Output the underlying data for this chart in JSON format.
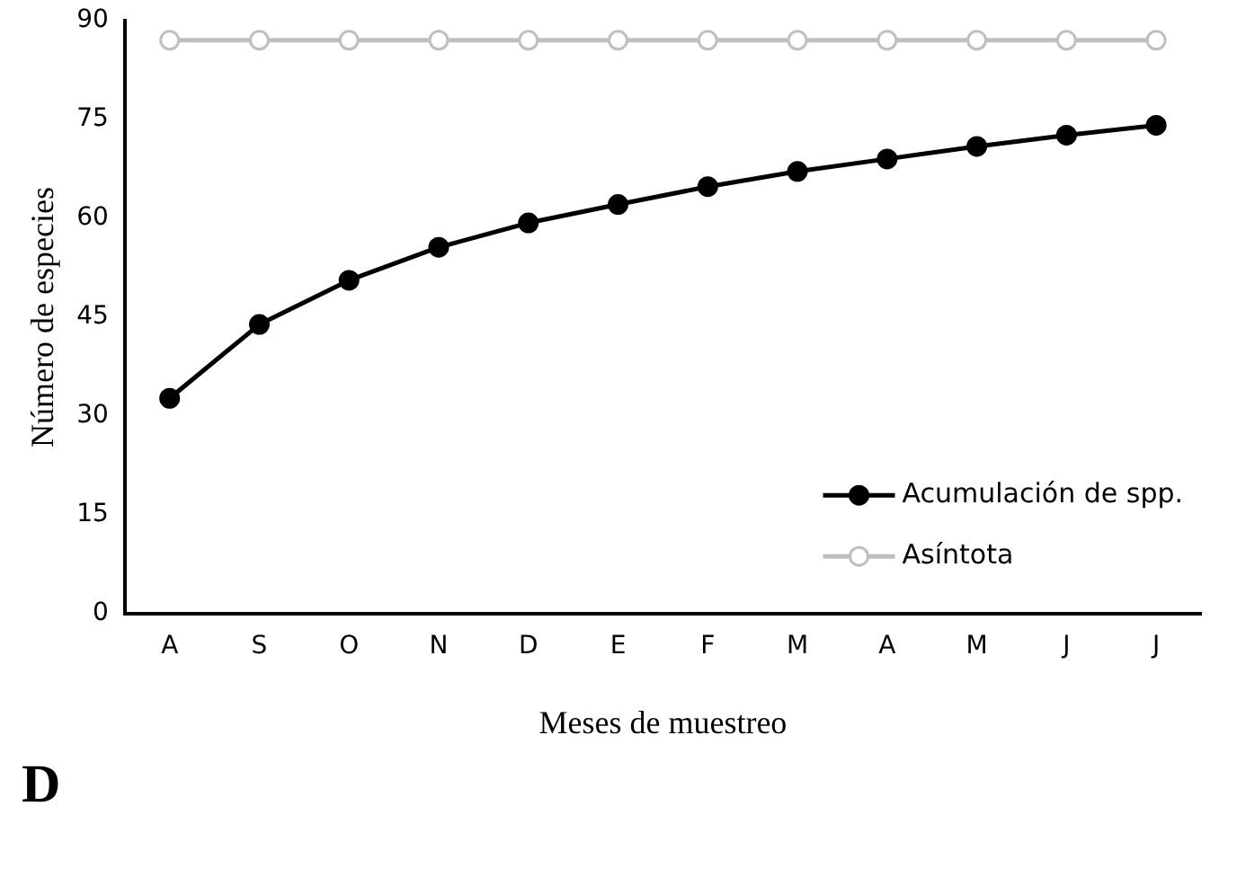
{
  "chart_data": {
    "type": "line",
    "xlabel": "Meses de muestreo",
    "ylabel": "Número de especies",
    "annotations": [
      "D"
    ],
    "categories": [
      "A",
      "S",
      "O",
      "N",
      "D",
      "E",
      "F",
      "M",
      "A",
      "M",
      "J",
      "J"
    ],
    "series": [
      {
        "name": "Acumulación de spp.",
        "color": "#000000",
        "marker": "circle",
        "values": [
          32.7,
          43.9,
          50.6,
          55.6,
          59.3,
          62.1,
          64.8,
          67.1,
          69.0,
          70.9,
          72.6,
          74.1
        ]
      },
      {
        "name": "Asíntota",
        "color": "#bfbfbf",
        "marker": "circle",
        "values": [
          87,
          87,
          87,
          87,
          87,
          87,
          87,
          87,
          87,
          87,
          87,
          87
        ]
      }
    ],
    "ylim": [
      0,
      90
    ],
    "yticks": [
      0,
      15,
      30,
      45,
      60,
      75,
      90
    ],
    "grid": false,
    "legend": "bottom right",
    "line_style": "solid"
  }
}
